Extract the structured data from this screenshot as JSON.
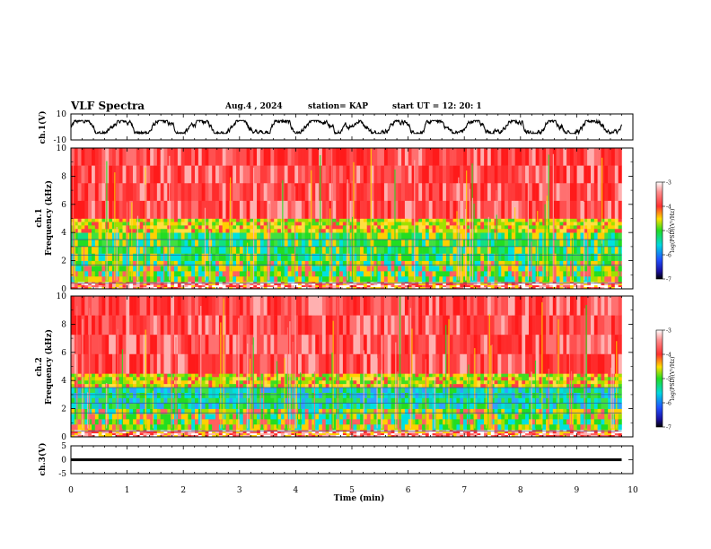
{
  "header": {
    "title": "VLF Spectra",
    "date": "Aug.4 , 2024",
    "station": "station= KAP",
    "start": "start UT = 12: 20: 1"
  },
  "colors": {
    "hot": "#ff2b2b",
    "warm": "#ffd000",
    "mid": "#22dd22",
    "cool": "#00e0e0",
    "cold": "#2040ff",
    "void": "#000000"
  },
  "chart_data": [
    {
      "type": "line",
      "id": "ch1-waveform",
      "ylabel": "ch.1(V)",
      "xlim": [
        0,
        10
      ],
      "ylim": [
        -10,
        10
      ],
      "yticks": [
        "10",
        "-10"
      ],
      "x_span_min": [
        0,
        9.8
      ],
      "y_typical_range": [
        -5,
        5
      ]
    },
    {
      "type": "heatmap",
      "id": "ch1-spectrogram",
      "ylabel": "Frequency (kHz)",
      "channel_label": "ch.1",
      "xlim": [
        0,
        10
      ],
      "ylim": [
        0,
        10
      ],
      "yticks": [
        "0",
        "2",
        "4",
        "6",
        "8",
        "10"
      ],
      "x_span_min": [
        0,
        9.8
      ],
      "colorbar": {
        "label": "log(PSD)(V²/Hz)",
        "range": [
          -7,
          -3
        ],
        "ticks": [
          "-3",
          "-4",
          "-5",
          "-6",
          "-7"
        ]
      },
      "bands_khz": [
        {
          "from": 0,
          "to": 0.5,
          "level": "white-red"
        },
        {
          "from": 0.5,
          "to": 2.0,
          "level": "green-yellow"
        },
        {
          "from": 2.0,
          "to": 4.0,
          "level": "green-cyan"
        },
        {
          "from": 4.0,
          "to": 5.0,
          "level": "yellow-green"
        },
        {
          "from": 5.0,
          "to": 10.0,
          "level": "red"
        }
      ]
    },
    {
      "type": "heatmap",
      "id": "ch2-spectrogram",
      "ylabel": "Frequency (kHz)",
      "channel_label": "ch.2",
      "xlim": [
        0,
        10
      ],
      "ylim": [
        0,
        10
      ],
      "yticks": [
        "0",
        "2",
        "4",
        "6",
        "8",
        "10"
      ],
      "x_span_min": [
        0,
        9.8
      ],
      "colorbar": {
        "label": "log(PSD)(V²/Hz)",
        "range": [
          -7,
          -3
        ],
        "ticks": [
          "-3",
          "-4",
          "-5",
          "-6",
          "-7"
        ]
      },
      "bands_khz": [
        {
          "from": 0,
          "to": 0.5,
          "level": "white-red"
        },
        {
          "from": 0.5,
          "to": 2.0,
          "level": "green-yellow"
        },
        {
          "from": 2.0,
          "to": 3.5,
          "level": "cyan-green"
        },
        {
          "from": 3.5,
          "to": 4.5,
          "level": "yellow-green"
        },
        {
          "from": 4.5,
          "to": 10.0,
          "level": "red"
        }
      ]
    },
    {
      "type": "line",
      "id": "ch3-waveform",
      "ylabel": "ch.3(V)",
      "xlim": [
        0,
        10
      ],
      "ylim": [
        -5,
        5
      ],
      "yticks": [
        "5",
        "0",
        "-5"
      ],
      "x_span_min": [
        0,
        9.8
      ],
      "y_typical_range": [
        -0.5,
        0.5
      ]
    }
  ],
  "xaxis": {
    "label": "Time (min)",
    "ticks": [
      "0",
      "1",
      "2",
      "3",
      "4",
      "5",
      "6",
      "7",
      "8",
      "9",
      "10"
    ]
  }
}
